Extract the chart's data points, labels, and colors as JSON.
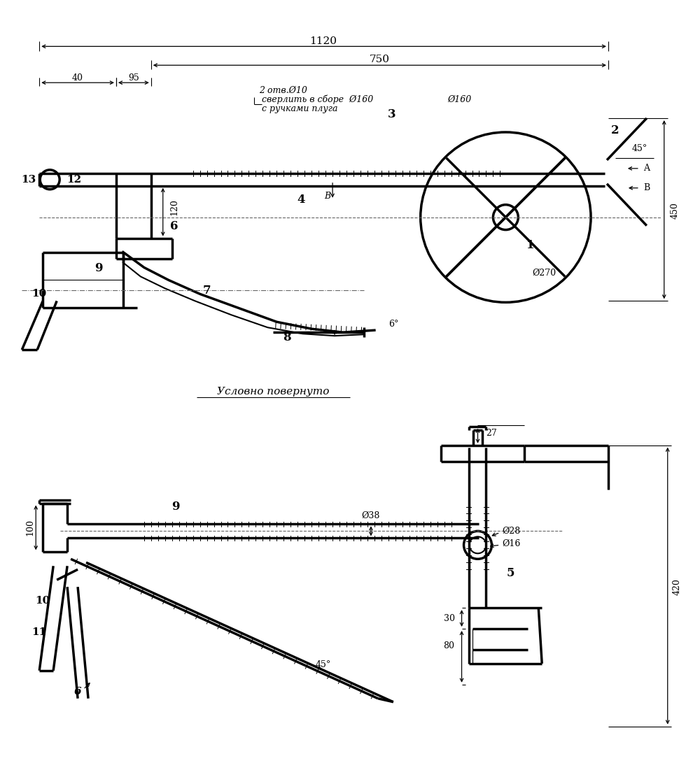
{
  "bg_color": "#ffffff",
  "line_color": "#000000",
  "fig_width": 10.0,
  "fig_height": 10.91,
  "texts": {
    "dim_1120": "1120",
    "dim_750": "750",
    "dim_40": "40",
    "dim_95": "95",
    "dim_120": "120",
    "dim_450": "450",
    "dim_270": "Ø270",
    "dim_160": "Ø160",
    "angle_45": "45°",
    "angle_6": "6°",
    "label_A": "A",
    "label_B": "B",
    "note1": "2 отв.Ø10",
    "note2": "сверлить в сборе  Ø160",
    "note3": "с ручками плуга",
    "cond_text": "Условно повернуто",
    "dim_100": "100",
    "dim_27": "27",
    "dim_38": "Ø38",
    "dim_28": "Ø28",
    "dim_16": "Ø16",
    "dim_420": "420",
    "dim_45b": "45°",
    "dim_30": "30",
    "dim_80": "80"
  }
}
